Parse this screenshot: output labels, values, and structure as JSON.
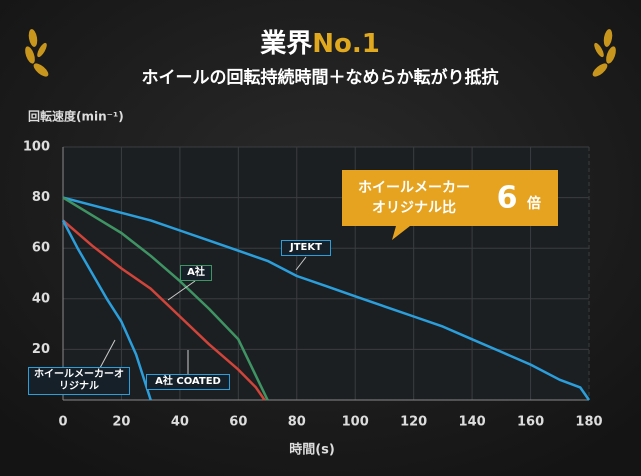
{
  "chart_data": {
    "type": "line",
    "title_parts": [
      "業界",
      "No.1"
    ],
    "subtitle": "ホイールの回転持続時間＋なめらか転がり抵抗",
    "y_label": "回転速度(min⁻¹)",
    "x_label": "時間(s)",
    "xlim": [
      0,
      180
    ],
    "ylim": [
      0,
      100
    ],
    "xticks": [
      0,
      20,
      40,
      60,
      80,
      100,
      120,
      140,
      160,
      180
    ],
    "yticks": [
      20,
      40,
      60,
      80,
      100
    ],
    "grid": true,
    "callout": {
      "lines": [
        "ホイールメーカー",
        "オリジナル比"
      ],
      "value": 6,
      "unit": "倍"
    },
    "series": [
      {
        "name": "JTEKT",
        "color": "#2b9fdc",
        "x": [
          0,
          10,
          20,
          30,
          40,
          50,
          60,
          70,
          80,
          90,
          100,
          110,
          120,
          130,
          140,
          150,
          160,
          170,
          177,
          180
        ],
        "values": [
          80,
          77,
          74,
          71,
          67,
          63,
          59,
          55,
          49,
          45,
          41,
          37,
          33,
          29,
          24,
          19,
          14,
          8,
          5,
          0
        ]
      },
      {
        "name": "A社",
        "color": "#3f9464",
        "x": [
          0,
          10,
          20,
          30,
          40,
          50,
          60,
          65,
          70
        ],
        "values": [
          80,
          73,
          66,
          57,
          47,
          36,
          24,
          12,
          0
        ]
      },
      {
        "name": "A社 COATED",
        "color": "#d0443a",
        "x": [
          0,
          10,
          20,
          30,
          40,
          50,
          60,
          66,
          69
        ],
        "values": [
          71,
          61,
          52,
          44,
          33,
          22,
          12,
          5,
          0
        ]
      },
      {
        "name": "ホイールメーカーオリジナル",
        "color": "#2b9fdc",
        "x": [
          0,
          5,
          10,
          15,
          20,
          25,
          30
        ],
        "values": [
          71,
          60,
          50,
          40,
          31,
          18,
          0
        ]
      }
    ]
  }
}
